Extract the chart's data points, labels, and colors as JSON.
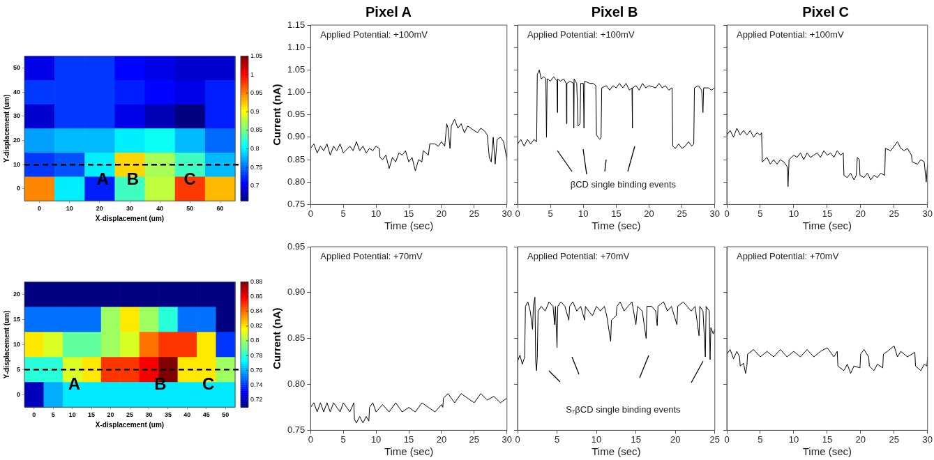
{
  "chart_data": [
    {
      "type": "heatmap",
      "xlabel": "X-displacement (um)",
      "ylabel": "Y-displacement (um)",
      "categories": [
        "0",
        "10",
        "20",
        "30",
        "40",
        "50",
        "60"
      ],
      "y_categories": [
        "50",
        "40",
        "30",
        "20",
        "10",
        "0"
      ],
      "cells": [
        [
          0.7,
          0.73,
          0.73,
          0.71,
          0.7,
          0.69,
          0.69
        ],
        [
          0.73,
          0.73,
          0.73,
          0.72,
          0.71,
          0.7,
          0.72
        ],
        [
          0.69,
          0.73,
          0.73,
          0.7,
          0.68,
          0.66,
          0.72
        ],
        [
          0.77,
          0.78,
          0.78,
          0.8,
          0.81,
          0.78,
          0.75
        ],
        [
          0.73,
          0.74,
          0.8,
          0.92,
          0.87,
          0.83,
          0.78
        ],
        [
          0.95,
          0.8,
          0.72,
          0.83,
          0.88,
          0.98,
          0.93
        ]
      ],
      "clim": [
        0.66,
        1.05
      ],
      "cticks": [
        0.7,
        0.75,
        0.8,
        0.85,
        0.9,
        0.95,
        1,
        1.05
      ],
      "ref_lines": [
        {
          "axis": "y",
          "value": "10",
          "line_style": "dashed",
          "color": "#000000"
        }
      ],
      "annotations": [
        "A",
        "B",
        "C"
      ]
    },
    {
      "type": "line",
      "title": "Pixel A",
      "xlabel": "Time (sec)",
      "ylabel": "Current (nA)",
      "xlim": [
        0,
        30
      ],
      "xticks": [
        0,
        5,
        10,
        15,
        20,
        25,
        30
      ],
      "ylim": [
        0.75,
        1.15
      ],
      "yticks": [
        {
          "value": 0.75,
          "label": "0.75"
        },
        {
          "value": 0.8,
          "label": "0.80"
        },
        {
          "value": 0.85,
          "label": "0.85"
        },
        {
          "value": 0.9,
          "label": "0.90"
        },
        {
          "value": 0.95,
          "label": "0.95"
        },
        {
          "value": 1,
          "label": "1.00"
        },
        {
          "value": 1.05,
          "label": "1.05"
        },
        {
          "value": 1.1,
          "label": "1.10"
        },
        {
          "value": 1.15,
          "label": "1.15"
        }
      ],
      "annotations": [
        "Applied Potential: +100mV"
      ],
      "series": [
        {
          "color": "#000000",
          "x": [
            0,
            0.5,
            1,
            1.5,
            2,
            2.5,
            3,
            3.5,
            4,
            4.5,
            5,
            6,
            6.5,
            7,
            7.5,
            8,
            8.5,
            9,
            9.5,
            10,
            10.5,
            10.6,
            11,
            11.5,
            12,
            12.5,
            13,
            13.5,
            14,
            14.5,
            15,
            15.5,
            16,
            16.5,
            17,
            17.2,
            18,
            18.2,
            19,
            19.5,
            20,
            20.5,
            20.8,
            21,
            21.3,
            21.5,
            22,
            22.5,
            23,
            23.5,
            24,
            25,
            25.5,
            26,
            26.5,
            27,
            27.3,
            27.6,
            27.9,
            28.2,
            28.5,
            29,
            29.5,
            30
          ],
          "values": [
            0.875,
            0.885,
            0.865,
            0.88,
            0.87,
            0.885,
            0.86,
            0.88,
            0.87,
            0.885,
            0.865,
            0.88,
            0.87,
            0.89,
            0.87,
            0.88,
            0.865,
            0.875,
            0.87,
            0.88,
            0.875,
            0.855,
            0.85,
            0.86,
            0.83,
            0.855,
            0.845,
            0.865,
            0.86,
            0.87,
            0.845,
            0.855,
            0.825,
            0.85,
            0.845,
            0.87,
            0.86,
            0.885,
            0.885,
            0.88,
            0.89,
            0.88,
            0.93,
            0.92,
            0.875,
            0.925,
            0.94,
            0.92,
            0.93,
            0.91,
            0.925,
            0.915,
            0.91,
            0.92,
            0.915,
            0.905,
            0.855,
            0.845,
            0.9,
            0.84,
            0.895,
            0.9,
            0.89,
            0.85
          ]
        }
      ]
    },
    {
      "type": "line",
      "title": "Pixel B",
      "xlabel": "Time (sec)",
      "tick_labels": "x",
      "xlim": [
        0,
        30
      ],
      "xticks": [
        0,
        5,
        10,
        15,
        20,
        25,
        30
      ],
      "ylim": [
        0.75,
        1.15
      ],
      "yticks": [
        0.75,
        0.8,
        0.85,
        0.9,
        0.95,
        1,
        1.05,
        1.1,
        1.15
      ],
      "annotations": [
        "Applied Potential: +100mV",
        "βCD single binding events"
      ],
      "series": [
        {
          "color": "#000000",
          "x": [
            0,
            0.5,
            1,
            1.5,
            2,
            2.5,
            2.9,
            3,
            3.3,
            3.6,
            4,
            4.3,
            4.4,
            4.5,
            5,
            5.5,
            6,
            6.05,
            6.1,
            6.5,
            7,
            7.4,
            7.45,
            7.5,
            8,
            8.5,
            8.55,
            8.6,
            9,
            9.2,
            9.5,
            9.6,
            10,
            10.1,
            10.2,
            11,
            11.5,
            11.9,
            12,
            12.5,
            12.7,
            12.8,
            13.5,
            14,
            14.5,
            15,
            15.5,
            16,
            16.5,
            17,
            17.4,
            17.45,
            17.5,
            18,
            18.5,
            19,
            19.5,
            20,
            21,
            21.5,
            22,
            22.5,
            23,
            23.5,
            23.6,
            24,
            24.5,
            25,
            25.5,
            26,
            26.5,
            26.8,
            26.9,
            27.5,
            28,
            28.2,
            28.3,
            29,
            29.5,
            30
          ],
          "values": [
            0.885,
            0.895,
            0.88,
            0.895,
            0.885,
            0.895,
            0.89,
            1.04,
            1.05,
            1.03,
            1.035,
            1.03,
            0.9,
            1.03,
            1.025,
            1.035,
            1.025,
            0.955,
            1.03,
            1.025,
            1.03,
            1.02,
            0.93,
            1.02,
            1.025,
            1.02,
            0.92,
            1.03,
            1.02,
            0.925,
            0.93,
            1.02,
            1.02,
            0.92,
            1.025,
            1.02,
            1.02,
            1.015,
            0.905,
            0.895,
            0.9,
            1.01,
            1.015,
            1.005,
            1.015,
            1.01,
            1.02,
            1.01,
            1.02,
            1.005,
            1.01,
            0.92,
            1.01,
            1.015,
            1.005,
            1.02,
            1.01,
            1.015,
            1.01,
            1.02,
            1.01,
            1.015,
            1.005,
            1.01,
            0.88,
            0.875,
            0.885,
            0.875,
            0.88,
            0.89,
            0.88,
            0.885,
            1.01,
            1.015,
            1.005,
            0.955,
            1.01,
            1.01,
            1.005,
            1.01
          ]
        }
      ]
    },
    {
      "type": "line",
      "title": "Pixel C",
      "xlabel": "Time (sec)",
      "tick_labels": "x",
      "xlim": [
        0,
        30
      ],
      "xticks": [
        0,
        5,
        10,
        15,
        20,
        25,
        30
      ],
      "ylim": [
        0.75,
        1.15
      ],
      "yticks": [
        0.75,
        0.8,
        0.85,
        0.9,
        0.95,
        1,
        1.05,
        1.1,
        1.15
      ],
      "annotations": [
        "Applied Potential: +100mV"
      ],
      "series": [
        {
          "color": "#000000",
          "x": [
            0,
            0.5,
            1,
            1.5,
            2,
            2.5,
            3,
            3.5,
            4,
            4.5,
            5,
            5.2,
            5.3,
            6,
            6.5,
            7,
            7.5,
            8,
            8.5,
            9,
            9.15,
            9.3,
            10,
            10.5,
            11,
            11.5,
            12,
            12.5,
            13,
            13.5,
            14,
            14.5,
            15,
            15.5,
            16,
            16.5,
            17,
            17.4,
            17.5,
            18,
            18.5,
            19,
            19.35,
            19.5,
            19.8,
            19.9,
            20.5,
            21,
            21.5,
            22,
            22.5,
            23,
            23.6,
            23.7,
            24.5,
            25,
            25.5,
            26,
            26.5,
            27,
            27.6,
            27.7,
            28.5,
            29,
            29.5,
            29.8,
            30
          ],
          "values": [
            0.905,
            0.915,
            0.9,
            0.92,
            0.905,
            0.915,
            0.905,
            0.915,
            0.9,
            0.91,
            0.905,
            0.91,
            0.845,
            0.855,
            0.84,
            0.85,
            0.84,
            0.85,
            0.845,
            0.835,
            0.79,
            0.85,
            0.86,
            0.855,
            0.865,
            0.85,
            0.865,
            0.855,
            0.86,
            0.865,
            0.855,
            0.87,
            0.86,
            0.865,
            0.855,
            0.87,
            0.86,
            0.865,
            0.815,
            0.81,
            0.82,
            0.805,
            0.815,
            0.855,
            0.85,
            0.815,
            0.81,
            0.82,
            0.805,
            0.815,
            0.81,
            0.82,
            0.815,
            0.875,
            0.87,
            0.88,
            0.89,
            0.875,
            0.87,
            0.875,
            0.86,
            0.845,
            0.84,
            0.85,
            0.845,
            0.8,
            0.84
          ]
        }
      ]
    },
    {
      "type": "heatmap",
      "xlabel": "X-displacement (um)",
      "ylabel": "Y-displacement (um)",
      "categories": [
        "0",
        "5",
        "10",
        "15",
        "20",
        "25",
        "30",
        "35",
        "40",
        "45",
        "50"
      ],
      "y_categories": [
        "20",
        "15",
        "10",
        "5",
        "0"
      ],
      "cells": [
        [
          0.71,
          0.71,
          0.71,
          0.71,
          0.71,
          0.71,
          0.71,
          0.71,
          0.71,
          0.71,
          0.71
        ],
        [
          0.75,
          0.75,
          0.75,
          0.75,
          0.8,
          0.82,
          0.8,
          0.78,
          0.75,
          0.75,
          0.71
        ],
        [
          0.82,
          0.81,
          0.79,
          0.79,
          0.8,
          0.81,
          0.84,
          0.85,
          0.85,
          0.82,
          0.74
        ],
        [
          0.78,
          0.78,
          0.81,
          0.82,
          0.85,
          0.85,
          0.86,
          0.88,
          0.82,
          0.82,
          0.8
        ],
        [
          0.72,
          0.76,
          0.77,
          0.77,
          0.77,
          0.77,
          0.77,
          0.77,
          0.77,
          0.77,
          0.77
        ]
      ],
      "clim": [
        0.71,
        0.88
      ],
      "cticks": [
        0.72,
        0.74,
        0.76,
        0.78,
        0.8,
        0.82,
        0.84,
        0.86,
        0.88
      ],
      "ref_lines": [
        {
          "axis": "y",
          "value": "5",
          "line_style": "dashed",
          "color": "#000000"
        }
      ],
      "annotations": [
        "A",
        "B",
        "C"
      ]
    },
    {
      "type": "line",
      "xlabel": "Time (sec)",
      "ylabel": "Current (nA)",
      "xlim": [
        0,
        30
      ],
      "xticks": [
        0,
        5,
        10,
        15,
        20,
        25,
        30
      ],
      "ylim": [
        0.75,
        0.95
      ],
      "yticks": [
        {
          "value": 0.75,
          "label": "0.75"
        },
        {
          "value": 0.8,
          "label": "0.80"
        },
        {
          "value": 0.85,
          "label": "0.85"
        },
        {
          "value": 0.9,
          "label": "0.90"
        },
        {
          "value": 0.95,
          "label": "0.95"
        }
      ],
      "annotations": [
        "Applied Potential: +70mV"
      ],
      "series": [
        {
          "color": "#000000",
          "x": [
            0,
            0.5,
            1,
            1.5,
            2,
            2.5,
            3,
            3.5,
            4,
            4.5,
            5,
            5.5,
            6,
            6.6,
            6.7,
            7,
            7.5,
            8,
            8.5,
            8.9,
            9,
            9.5,
            10,
            11,
            12,
            13,
            14,
            15,
            16,
            17,
            18,
            19,
            20,
            20.2,
            20.3,
            21,
            22,
            23,
            24,
            25,
            26,
            27,
            28,
            29,
            30
          ],
          "values": [
            0.775,
            0.78,
            0.77,
            0.78,
            0.77,
            0.78,
            0.77,
            0.78,
            0.775,
            0.77,
            0.78,
            0.775,
            0.77,
            0.78,
            0.762,
            0.758,
            0.765,
            0.758,
            0.765,
            0.76,
            0.775,
            0.78,
            0.77,
            0.778,
            0.77,
            0.78,
            0.77,
            0.775,
            0.77,
            0.78,
            0.775,
            0.77,
            0.778,
            0.775,
            0.785,
            0.79,
            0.78,
            0.79,
            0.785,
            0.78,
            0.79,
            0.783,
            0.787,
            0.78,
            0.785
          ]
        }
      ]
    },
    {
      "type": "line",
      "xlabel": "Time (sec)",
      "tick_labels": "x",
      "xlim": [
        0,
        25
      ],
      "xticks": [
        0,
        5,
        10,
        15,
        20,
        25
      ],
      "ylim": [
        0.75,
        0.95
      ],
      "yticks": [
        0.75,
        0.8,
        0.85,
        0.9,
        0.95
      ],
      "annotations": [
        "Applied Potential: +70mV",
        "S₇βCD single binding events"
      ],
      "series": [
        {
          "color": "#000000",
          "x": [
            0,
            0.3,
            0.6,
            0.9,
            1,
            1.3,
            1.6,
            1.9,
            2,
            2.2,
            2.3,
            2.4,
            2.5,
            2.6,
            3,
            3.5,
            4,
            4.5,
            4.7,
            4.8,
            5,
            5.1,
            5.5,
            6,
            6.5,
            6.6,
            7,
            7.5,
            8,
            8.5,
            8.6,
            9,
            9.5,
            10,
            10.5,
            11,
            11.3,
            11.8,
            11.9,
            12.5,
            12.6,
            13,
            13.5,
            14,
            14.5,
            15,
            15.2,
            15.8,
            16.3,
            16.4,
            17,
            17.5,
            17.7,
            17.8,
            18.5,
            19,
            19.5,
            20.2,
            20.3,
            21,
            21.5,
            22,
            22.5,
            23,
            23.1,
            23.5,
            23.8,
            23.9,
            24.3,
            24.4,
            24.5,
            24.8,
            25
          ],
          "values": [
            0.825,
            0.832,
            0.822,
            0.83,
            0.885,
            0.89,
            0.88,
            0.86,
            0.885,
            0.895,
            0.825,
            0.815,
            0.83,
            0.88,
            0.885,
            0.88,
            0.89,
            0.885,
            0.865,
            0.885,
            0.84,
            0.885,
            0.89,
            0.885,
            0.87,
            0.885,
            0.89,
            0.88,
            0.885,
            0.87,
            0.885,
            0.88,
            0.875,
            0.885,
            0.88,
            0.885,
            0.875,
            0.847,
            0.87,
            0.875,
            0.885,
            0.89,
            0.88,
            0.885,
            0.89,
            0.865,
            0.885,
            0.88,
            0.85,
            0.885,
            0.885,
            0.88,
            0.864,
            0.885,
            0.89,
            0.88,
            0.885,
            0.865,
            0.885,
            0.89,
            0.885,
            0.88,
            0.885,
            0.853,
            0.885,
            0.88,
            0.83,
            0.885,
            0.88,
            0.827,
            0.862,
            0.855,
            0.86
          ]
        }
      ]
    },
    {
      "type": "line",
      "xlabel": "Time (sec)",
      "tick_labels": "x",
      "xlim": [
        0,
        30
      ],
      "xticks": [
        0,
        5,
        10,
        15,
        20,
        25,
        30
      ],
      "ylim": [
        0.75,
        0.95
      ],
      "yticks": [
        0.75,
        0.8,
        0.85,
        0.9,
        0.95
      ],
      "annotations": [
        "Applied Potential: +70mV"
      ],
      "series": [
        {
          "color": "#000000",
          "x": [
            0,
            0.5,
            1,
            1.5,
            1.9,
            2,
            2.5,
            2.8,
            3,
            3.1,
            4,
            5,
            6,
            7,
            8,
            9,
            10,
            11,
            12,
            13,
            14,
            15,
            16,
            16.5,
            16.6,
            17.5,
            18,
            18.5,
            19,
            19.9,
            20,
            20.5,
            21.2,
            21.3,
            22,
            22.5,
            23.3,
            23.4,
            24,
            25,
            25.5,
            26,
            27,
            28.1,
            28.2,
            29,
            29.5,
            29.9,
            30
          ],
          "values": [
            0.833,
            0.838,
            0.828,
            0.836,
            0.83,
            0.82,
            0.823,
            0.812,
            0.82,
            0.833,
            0.838,
            0.83,
            0.836,
            0.83,
            0.838,
            0.83,
            0.836,
            0.83,
            0.838,
            0.83,
            0.836,
            0.84,
            0.83,
            0.836,
            0.82,
            0.815,
            0.822,
            0.812,
            0.82,
            0.818,
            0.833,
            0.838,
            0.83,
            0.82,
            0.815,
            0.822,
            0.818,
            0.833,
            0.836,
            0.842,
            0.83,
            0.836,
            0.83,
            0.835,
            0.82,
            0.815,
            0.822,
            0.82,
            0.83
          ]
        }
      ]
    }
  ]
}
